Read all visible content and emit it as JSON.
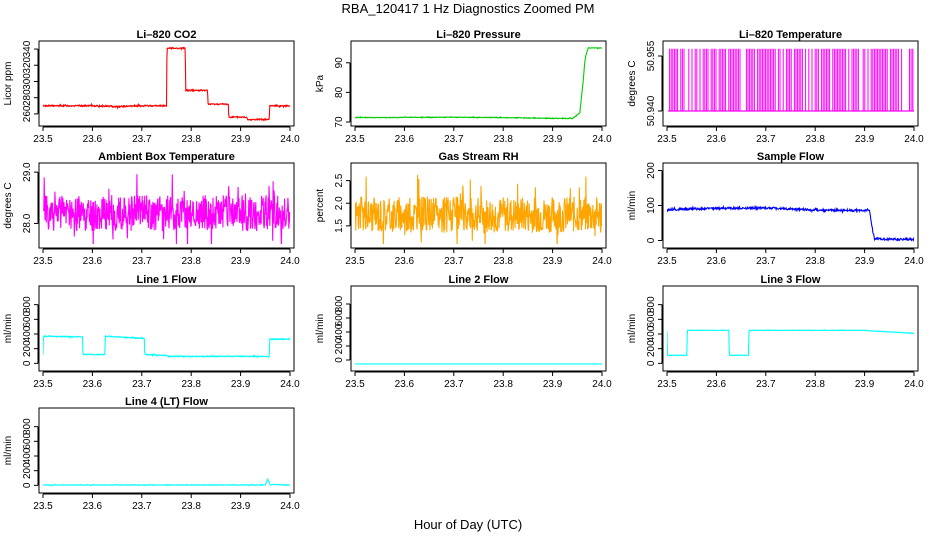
{
  "figure": {
    "title": "RBA_120417  1 Hz Diagnostics Zoomed PM",
    "xlabel": "Hour of Day (UTC)"
  },
  "chart_data": [
    {
      "type": "line",
      "title": "Li–820 CO2",
      "ylabel": "Licor ppm",
      "color": "#ff0000",
      "xlim": [
        23.5,
        24.0
      ],
      "ylim": [
        250,
        345
      ],
      "xticks": [
        23.5,
        23.6,
        23.7,
        23.8,
        23.9,
        24.0
      ],
      "xtick_labels": [
        "23.5",
        "23.6",
        "23.7",
        "23.8",
        "23.9",
        "24.0"
      ],
      "yticks": [
        260,
        280,
        300,
        320,
        340
      ],
      "ytick_labels": [
        "260",
        "280",
        "300",
        "320",
        "340"
      ],
      "noise": 0.8,
      "x": [
        23.5,
        23.6,
        23.65,
        23.7,
        23.75,
        23.751,
        23.788,
        23.789,
        23.833,
        23.834,
        23.875,
        23.876,
        23.913,
        23.914,
        23.958,
        23.959,
        24.0
      ],
      "y": [
        270,
        270,
        269,
        270,
        270,
        341,
        341,
        289,
        289,
        272,
        272,
        256,
        256,
        253,
        253,
        270,
        270
      ]
    },
    {
      "type": "line",
      "title": "Li–820 Pressure",
      "ylabel": "kPa",
      "color": "#00cc00",
      "xlim": [
        23.5,
        24.0
      ],
      "ylim": [
        70,
        96
      ],
      "xticks": [
        23.5,
        23.6,
        23.7,
        23.8,
        23.9,
        24.0
      ],
      "xtick_labels": [
        "23.5",
        "23.6",
        "23.7",
        "23.8",
        "23.9",
        "24.0"
      ],
      "yticks": [
        70,
        80,
        90
      ],
      "ytick_labels": [
        "70",
        "80",
        "90"
      ],
      "noise": 0.1,
      "x": [
        23.5,
        23.58,
        23.6,
        23.7,
        23.8,
        23.9,
        23.94,
        23.955,
        23.962,
        23.965,
        23.968,
        23.972,
        24.0
      ],
      "y": [
        71.5,
        71.5,
        71.6,
        71.6,
        71.5,
        71.2,
        71.2,
        73,
        84,
        90,
        93,
        95,
        95
      ]
    },
    {
      "type": "area",
      "title": "Li–820 Temperature",
      "ylabel": "degrees C",
      "color": "#ff00ff",
      "xlim": [
        23.5,
        24.0
      ],
      "ylim": [
        50.937,
        50.958
      ],
      "xticks": [
        23.5,
        23.6,
        23.7,
        23.8,
        23.9,
        24.0
      ],
      "xtick_labels": [
        "23.5",
        "23.6",
        "23.7",
        "23.8",
        "23.9",
        "24.0"
      ],
      "yticks": [
        50.94,
        50.955
      ],
      "ytick_labels": [
        "50.940",
        "50.955"
      ],
      "x": [
        23.5,
        23.98,
        23.995,
        24.0
      ],
      "y_low": [
        50.94,
        50.94,
        50.94,
        50.94
      ],
      "y_high": [
        50.957,
        50.957,
        50.957,
        50.957
      ]
    },
    {
      "type": "line",
      "title": "Ambient Box Temperature",
      "ylabel": "degrees C",
      "color": "#ff00ff",
      "xlim": [
        23.5,
        24.0
      ],
      "ylim": [
        27.6,
        29.1
      ],
      "xticks": [
        23.5,
        23.6,
        23.7,
        23.8,
        23.9,
        24.0
      ],
      "xtick_labels": [
        "23.5",
        "23.6",
        "23.7",
        "23.8",
        "23.9",
        "24.0"
      ],
      "yticks": [
        28.0,
        29.0
      ],
      "ytick_labels": [
        "28.0",
        "29.0"
      ],
      "noise": 0.35,
      "x": [
        23.5,
        24.0
      ],
      "y": [
        28.2,
        28.2
      ]
    },
    {
      "type": "line",
      "title": "Gas Stream RH",
      "ylabel": "percent",
      "color": "#ffa500",
      "xlim": [
        23.5,
        24.0
      ],
      "ylim": [
        1.1,
        2.8
      ],
      "xticks": [
        23.5,
        23.6,
        23.7,
        23.8,
        23.9,
        24.0
      ],
      "xtick_labels": [
        "23.5",
        "23.6",
        "23.7",
        "23.8",
        "23.9",
        "24.0"
      ],
      "yticks": [
        1.5,
        2.0,
        2.5
      ],
      "ytick_labels": [
        "1.5",
        "2.0",
        "2.5"
      ],
      "noise": 0.4,
      "x": [
        23.5,
        24.0
      ],
      "y": [
        1.75,
        1.75
      ]
    },
    {
      "type": "line",
      "title": "Sample Flow",
      "ylabel": "ml/min",
      "color": "#0000ff",
      "xlim": [
        23.5,
        24.0
      ],
      "ylim": [
        -10,
        210
      ],
      "xticks": [
        23.5,
        23.6,
        23.7,
        23.8,
        23.9,
        24.0
      ],
      "xtick_labels": [
        "23.5",
        "23.6",
        "23.7",
        "23.8",
        "23.9",
        "24.0"
      ],
      "yticks": [
        0,
        100,
        200
      ],
      "ytick_labels": [
        "0",
        "100",
        "200"
      ],
      "noise": 3,
      "x": [
        23.5,
        23.6,
        23.7,
        23.8,
        23.9,
        23.91,
        23.915,
        23.92,
        24.0
      ],
      "y": [
        88,
        92,
        93,
        87,
        86,
        86,
        40,
        5,
        3
      ]
    },
    {
      "type": "line",
      "title": "Line 1 Flow",
      "ylabel": "ml/min",
      "color": "#00ffff",
      "xlim": [
        23.5,
        24.0
      ],
      "ylim": [
        -50,
        1000
      ],
      "xticks": [
        23.5,
        23.6,
        23.7,
        23.8,
        23.9,
        24.0
      ],
      "xtick_labels": [
        "23.5",
        "23.6",
        "23.7",
        "23.8",
        "23.9",
        "24.0"
      ],
      "yticks": [
        0,
        200,
        400,
        600,
        800
      ],
      "ytick_labels": [
        "0",
        "200",
        "400",
        "600",
        "800"
      ],
      "noise": 6,
      "x": [
        23.5,
        23.501,
        23.58,
        23.581,
        23.625,
        23.626,
        23.705,
        23.706,
        23.75,
        23.751,
        23.958,
        23.959,
        24.0
      ],
      "y": [
        120,
        370,
        360,
        120,
        120,
        370,
        340,
        120,
        110,
        95,
        95,
        330,
        330
      ]
    },
    {
      "type": "line",
      "title": "Line 2 Flow",
      "ylabel": "ml/min",
      "color": "#00ffff",
      "xlim": [
        23.5,
        24.0
      ],
      "ylim": [
        -100,
        1000
      ],
      "xticks": [
        23.5,
        23.6,
        23.7,
        23.8,
        23.9,
        24.0
      ],
      "xtick_labels": [
        "23.5",
        "23.6",
        "23.7",
        "23.8",
        "23.9",
        "24.0"
      ],
      "yticks": [
        0,
        200,
        400,
        600,
        800
      ],
      "ytick_labels": [
        "0",
        "200",
        "400",
        "600",
        "800"
      ],
      "noise": 0,
      "x": [
        23.5,
        24.0
      ],
      "y": [
        -55,
        -55
      ]
    },
    {
      "type": "line",
      "title": "Line 3 Flow",
      "ylabel": "ml/min",
      "color": "#00ffff",
      "xlim": [
        23.5,
        24.0
      ],
      "ylim": [
        -50,
        1000
      ],
      "xticks": [
        23.5,
        23.6,
        23.7,
        23.8,
        23.9,
        24.0
      ],
      "xtick_labels": [
        "23.5",
        "23.6",
        "23.7",
        "23.8",
        "23.9",
        "24.0"
      ],
      "yticks": [
        0,
        200,
        400,
        600,
        800
      ],
      "ytick_labels": [
        "0",
        "200",
        "400",
        "600",
        "800"
      ],
      "noise": 3,
      "x": [
        23.5,
        23.501,
        23.54,
        23.541,
        23.625,
        23.626,
        23.665,
        23.666,
        23.9,
        23.92,
        24.0
      ],
      "y": [
        440,
        110,
        110,
        450,
        450,
        110,
        110,
        450,
        450,
        440,
        410
      ]
    },
    {
      "type": "line",
      "title": "Line 4 (LT) Flow",
      "ylabel": "ml/min",
      "color": "#00ffff",
      "xlim": [
        23.5,
        24.0
      ],
      "ylim": [
        -50,
        1000
      ],
      "xticks": [
        23.5,
        23.6,
        23.7,
        23.8,
        23.9,
        24.0
      ],
      "xtick_labels": [
        "23.5",
        "23.6",
        "23.7",
        "23.8",
        "23.9",
        "24.0"
      ],
      "yticks": [
        0,
        200,
        400,
        600,
        800
      ],
      "ytick_labels": [
        "0",
        "200",
        "400",
        "600",
        "800"
      ],
      "noise": 4,
      "x": [
        23.5,
        23.95,
        23.955,
        23.96,
        23.965,
        24.0
      ],
      "y": [
        5,
        5,
        80,
        5,
        10,
        5
      ]
    }
  ]
}
